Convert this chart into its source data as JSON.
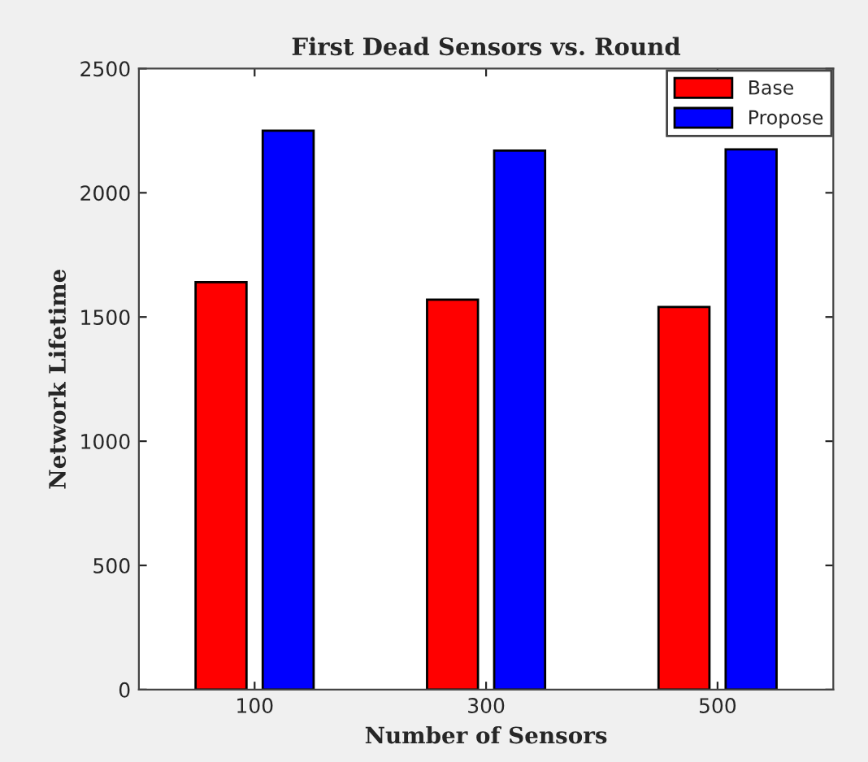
{
  "chart_data": {
    "type": "bar",
    "title": "First Dead Sensors vs. Round",
    "xlabel": "Number of Sensors",
    "ylabel": "Network Lifetime",
    "categories": [
      "100",
      "300",
      "500"
    ],
    "series": [
      {
        "name": "Base",
        "color": "#ff0000",
        "values": [
          1640,
          1570,
          1540
        ]
      },
      {
        "name": "Propose",
        "color": "#0000ff",
        "values": [
          2250,
          2170,
          2175
        ]
      }
    ],
    "ylim": [
      0,
      2500
    ],
    "yticks": [
      0,
      500,
      1000,
      1500,
      2000,
      2500
    ],
    "grid": false,
    "legend": "top right"
  }
}
